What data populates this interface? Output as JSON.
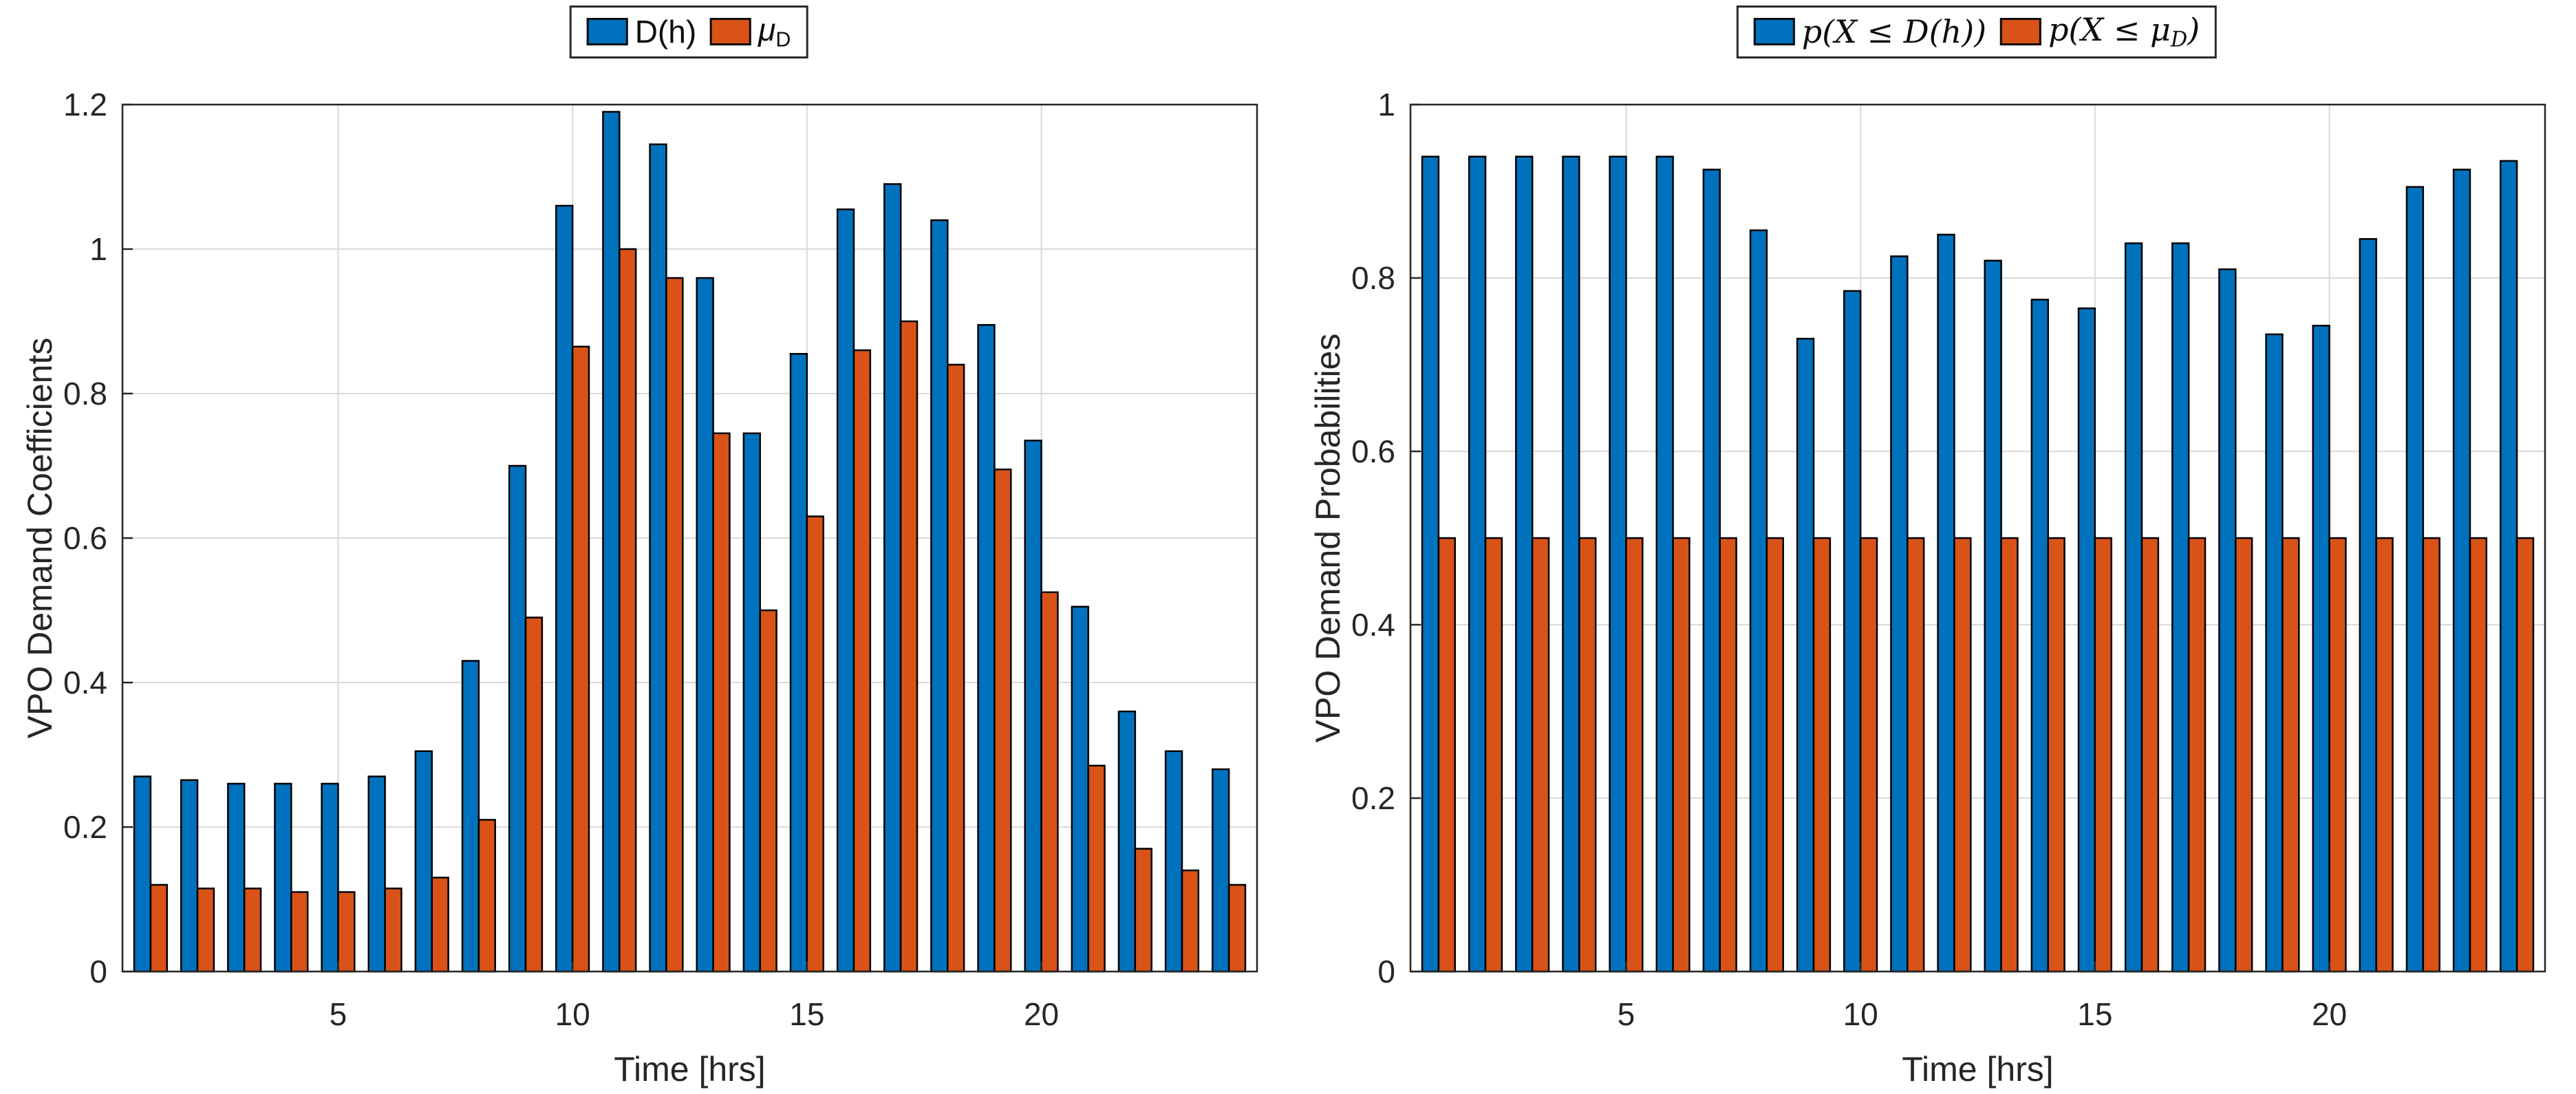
{
  "figure": {
    "background": "#ffffff"
  },
  "colors": {
    "series_blue": "#0072BD",
    "series_orange": "#D95319",
    "axis": "#262626",
    "grid": "#d9d9d9",
    "bar_edge": "#000000"
  },
  "chart_data": [
    {
      "type": "bar",
      "id": "vpo-demand-coefficients",
      "title": "",
      "xlabel": "Time [hrs]",
      "ylabel": "VPO Demand Coefficients",
      "xlim": [
        0.4,
        24.6
      ],
      "ylim": [
        0,
        1.2
      ],
      "yticks": [
        0,
        0.2,
        0.4,
        0.6,
        0.8,
        1,
        1.2
      ],
      "ytick_labels": [
        "0",
        "0.2",
        "0.4",
        "0.6",
        "0.8",
        "1",
        "1.2"
      ],
      "xticks": [
        5,
        10,
        15,
        20
      ],
      "xtick_labels": [
        "5",
        "10",
        "15",
        "20"
      ],
      "grid": true,
      "legend_position": "top-center",
      "categories": [
        1,
        2,
        3,
        4,
        5,
        6,
        7,
        8,
        9,
        10,
        11,
        12,
        13,
        14,
        15,
        16,
        17,
        18,
        19,
        20,
        21,
        22,
        23,
        24
      ],
      "series": [
        {
          "name": "D(h)",
          "color": "#0072BD",
          "values": [
            0.27,
            0.265,
            0.26,
            0.26,
            0.26,
            0.27,
            0.305,
            0.43,
            0.7,
            1.06,
            1.19,
            1.145,
            0.96,
            0.745,
            0.855,
            1.055,
            1.09,
            1.04,
            0.895,
            0.735,
            0.505,
            0.36,
            0.305,
            0.28
          ]
        },
        {
          "name": "mu_D",
          "color": "#D95319",
          "values": [
            0.12,
            0.115,
            0.115,
            0.11,
            0.11,
            0.115,
            0.13,
            0.21,
            0.49,
            0.865,
            1.0,
            0.96,
            0.745,
            0.5,
            0.63,
            0.86,
            0.9,
            0.84,
            0.695,
            0.525,
            0.285,
            0.17,
            0.14,
            0.12
          ]
        }
      ],
      "legend": [
        {
          "name": "series-dh",
          "color": "#0072BD",
          "segments": [
            {
              "t": "D(h)"
            }
          ]
        },
        {
          "name": "series-mu-d",
          "color": "#D95319",
          "segments": [
            {
              "t": "μ",
              "italic": true
            },
            {
              "t": "D",
              "sub": true
            }
          ]
        }
      ]
    },
    {
      "type": "bar",
      "id": "vpo-demand-probabilities",
      "title": "",
      "xlabel": "Time [hrs]",
      "ylabel": "VPO Demand Probabilities",
      "xlim": [
        0.4,
        24.6
      ],
      "ylim": [
        0,
        1
      ],
      "yticks": [
        0,
        0.2,
        0.4,
        0.6,
        0.8,
        1
      ],
      "ytick_labels": [
        "0",
        "0.2",
        "0.4",
        "0.6",
        "0.8",
        "1"
      ],
      "xticks": [
        5,
        10,
        15,
        20
      ],
      "xtick_labels": [
        "5",
        "10",
        "15",
        "20"
      ],
      "grid": true,
      "legend_position": "top-center",
      "categories": [
        1,
        2,
        3,
        4,
        5,
        6,
        7,
        8,
        9,
        10,
        11,
        12,
        13,
        14,
        15,
        16,
        17,
        18,
        19,
        20,
        21,
        22,
        23,
        24
      ],
      "series": [
        {
          "name": "p(X <= D(h))",
          "color": "#0072BD",
          "values": [
            0.94,
            0.94,
            0.94,
            0.94,
            0.94,
            0.94,
            0.925,
            0.855,
            0.73,
            0.785,
            0.825,
            0.85,
            0.82,
            0.775,
            0.765,
            0.84,
            0.84,
            0.81,
            0.735,
            0.745,
            0.845,
            0.905,
            0.925,
            0.935
          ]
        },
        {
          "name": "p(X <= mu_D)",
          "color": "#D95319",
          "values": [
            0.5,
            0.5,
            0.5,
            0.5,
            0.5,
            0.5,
            0.5,
            0.5,
            0.5,
            0.5,
            0.5,
            0.5,
            0.5,
            0.5,
            0.5,
            0.5,
            0.5,
            0.5,
            0.5,
            0.5,
            0.5,
            0.5,
            0.5,
            0.5
          ]
        }
      ],
      "legend": [
        {
          "name": "series-p-x-le-dh",
          "color": "#0072BD",
          "segments": [
            {
              "t": "p(X ≤ D(h))",
              "italic": true,
              "serif": true
            }
          ]
        },
        {
          "name": "series-p-x-le-mu-d",
          "color": "#D95319",
          "segments": [
            {
              "t": "p(X ≤ μ",
              "italic": true,
              "serif": true
            },
            {
              "t": "D",
              "sub": true,
              "italic": true,
              "serif": true
            },
            {
              "t": ")",
              "italic": true,
              "serif": true
            }
          ]
        }
      ]
    }
  ]
}
